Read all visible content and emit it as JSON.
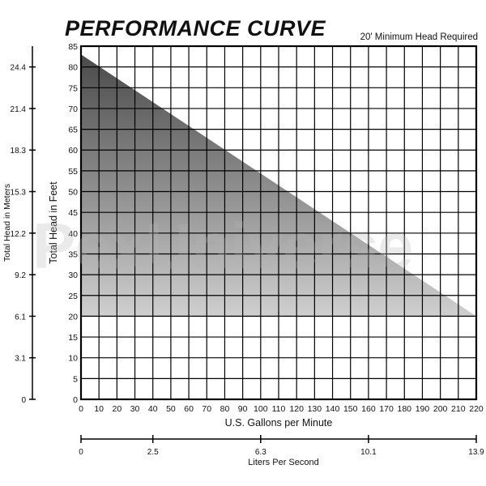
{
  "chart_data": {
    "type": "area",
    "title": "PERFORMANCE CURVE",
    "subtitle": "20' Minimum Head Required",
    "watermark": "PexUniverse",
    "x": [
      0,
      220
    ],
    "series": [
      {
        "values": [
          83,
          20
        ]
      }
    ],
    "floor": 20,
    "xlabel": "U.S. Gallons per Minute",
    "ylabel": "Total Head in Feet",
    "xlim": [
      0,
      220
    ],
    "ylim": [
      0,
      85
    ],
    "x_ticks": [
      0,
      10,
      20,
      30,
      40,
      50,
      60,
      70,
      80,
      90,
      100,
      110,
      120,
      130,
      140,
      150,
      160,
      170,
      180,
      190,
      200,
      210,
      220
    ],
    "y_ticks": [
      0,
      5,
      10,
      15,
      20,
      25,
      30,
      35,
      40,
      45,
      50,
      55,
      60,
      65,
      70,
      75,
      80,
      85
    ],
    "grid": true,
    "secondary_y": {
      "label": "Total Head in Meters",
      "ticks": [
        {
          "label": "0",
          "feet": 0
        },
        {
          "label": "3.1",
          "feet": 10
        },
        {
          "label": "6.1",
          "feet": 20
        },
        {
          "label": "9.2",
          "feet": 30
        },
        {
          "label": "12.2",
          "feet": 40
        },
        {
          "label": "15.3",
          "feet": 50
        },
        {
          "label": "18.3",
          "feet": 60
        },
        {
          "label": "21.4",
          "feet": 70
        },
        {
          "label": "24.4",
          "feet": 80
        }
      ]
    },
    "secondary_x": {
      "label": "Liters Per Second",
      "ticks": [
        {
          "label": "0",
          "gpm": 0
        },
        {
          "label": "2.5",
          "gpm": 40
        },
        {
          "label": "6.3",
          "gpm": 100
        },
        {
          "label": "10.1",
          "gpm": 160
        },
        {
          "label": "13.9",
          "gpm": 220
        }
      ]
    },
    "colors": {
      "fill_dark": "#4a4a4a",
      "fill_light": "#cfcfcf",
      "grid": "#000000"
    }
  }
}
